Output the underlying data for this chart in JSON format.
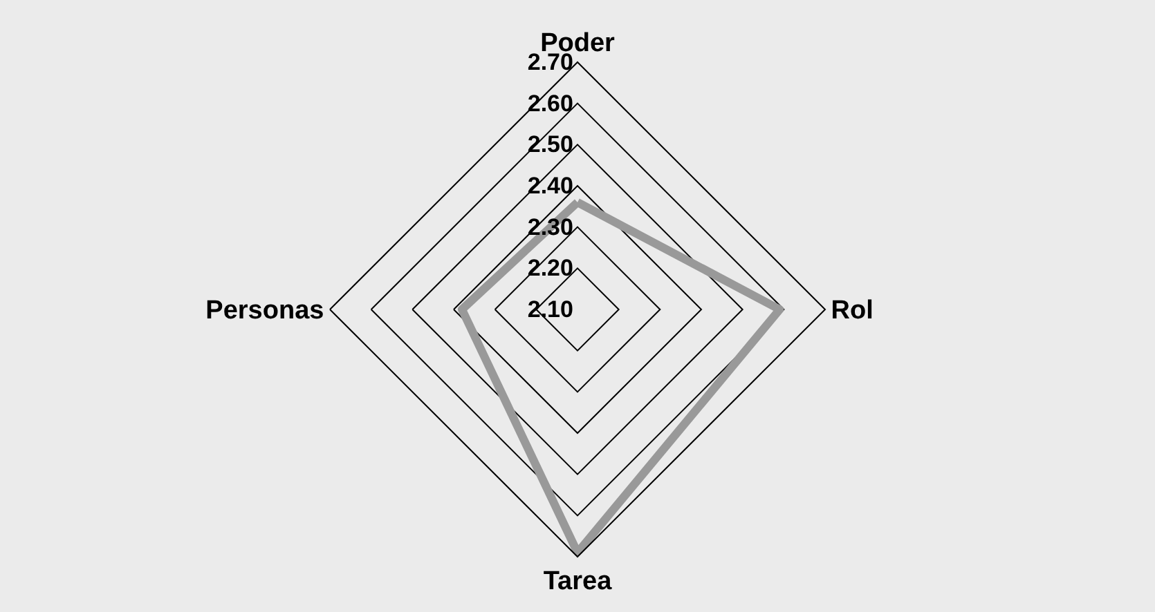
{
  "chart_data": {
    "type": "radar",
    "categories": [
      "Poder",
      "Rol",
      "Tarea",
      "Personas"
    ],
    "series": [
      {
        "color": "#999999",
        "values": [
          2.36,
          2.59,
          2.69,
          2.38
        ]
      }
    ],
    "ylim": [
      2.1,
      2.7
    ],
    "yticks": [
      {
        "value": 2.1,
        "label": "2.10"
      },
      {
        "value": 2.2,
        "label": "2.20"
      },
      {
        "value": 2.3,
        "label": "2.30"
      },
      {
        "value": 2.4,
        "label": "2.40"
      },
      {
        "value": 2.5,
        "label": "2.50"
      },
      {
        "value": 2.6,
        "label": "2.60"
      },
      {
        "value": 2.7,
        "label": "2.70"
      }
    ],
    "grid": true,
    "marker": "none",
    "line_style": "solid"
  }
}
